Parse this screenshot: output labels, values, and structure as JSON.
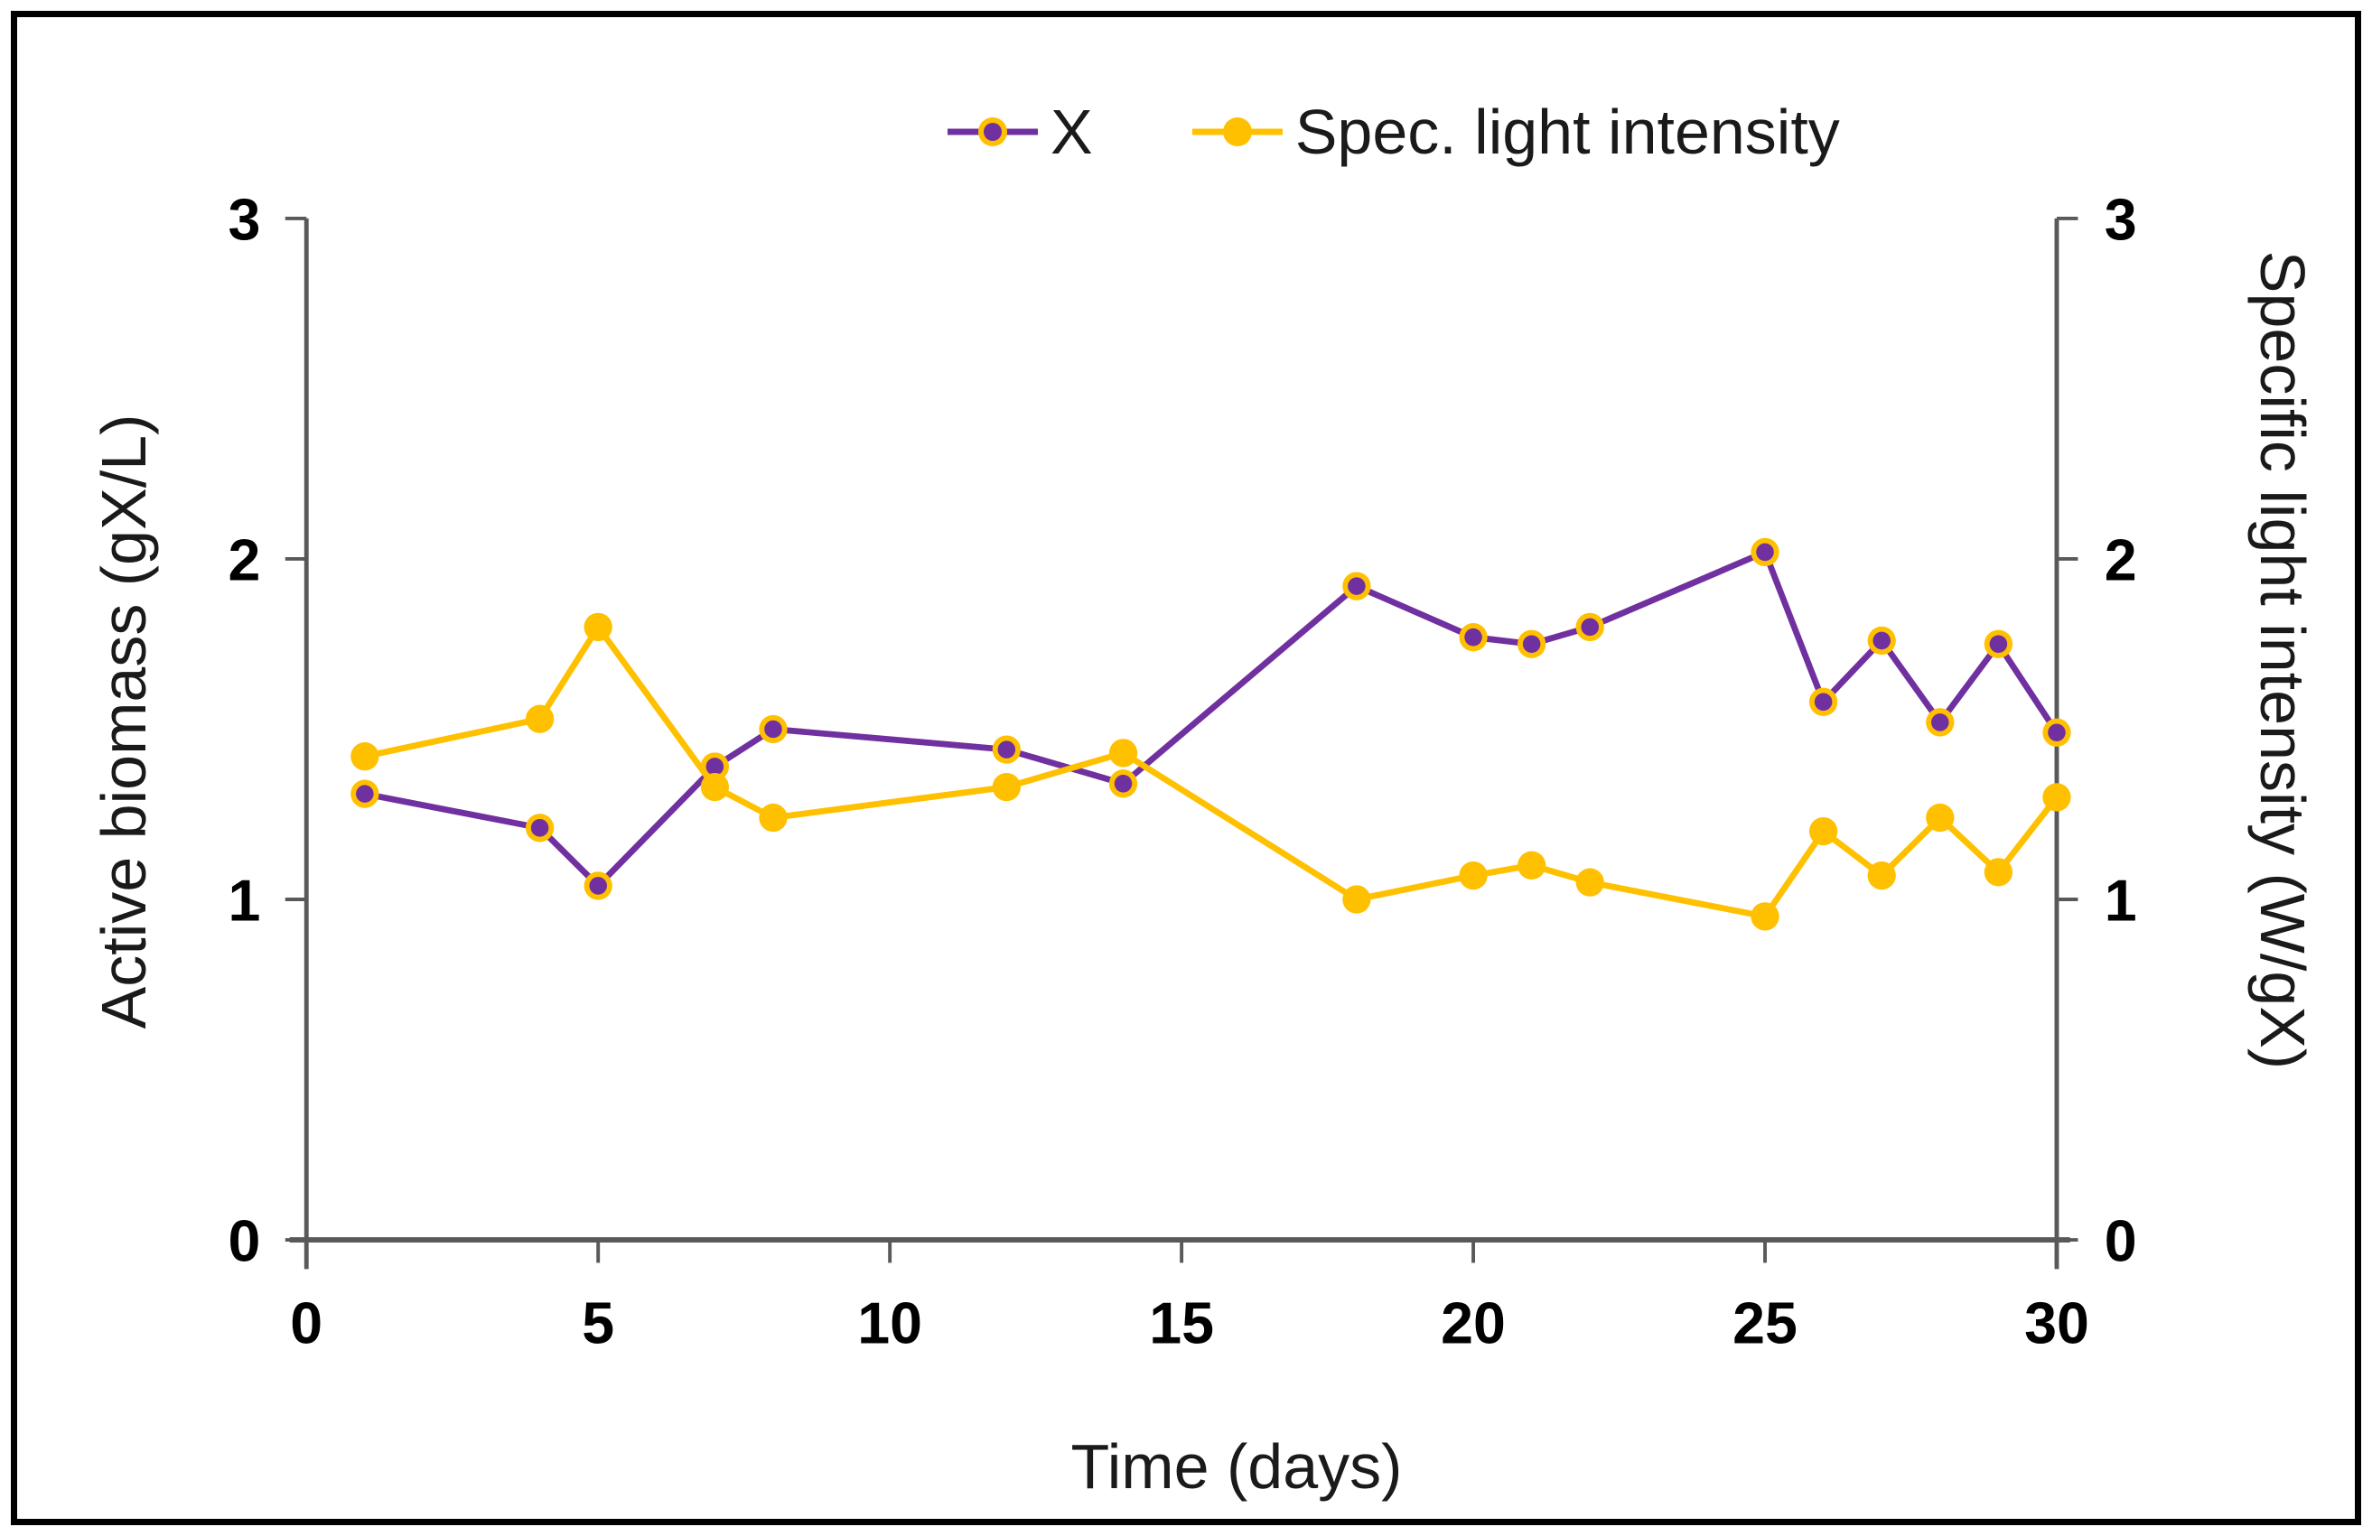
{
  "figure": {
    "background": "#ffffff",
    "border_color": "#000000"
  },
  "chart_data": {
    "type": "line",
    "title": "",
    "xlabel": "Time (days)",
    "ylabel_left": "Active biomass (gX/L)",
    "ylabel_right": "Specific light intensity (W/gX)",
    "legend_position": "top",
    "grid": false,
    "xlim": [
      0,
      30
    ],
    "ylim_left": [
      0,
      3
    ],
    "ylim_right": [
      0,
      3
    ],
    "x_ticks": [
      0,
      5,
      10,
      15,
      20,
      25,
      30
    ],
    "y_ticks_left": [
      0,
      1,
      2,
      3
    ],
    "y_ticks_right": [
      0,
      1,
      2,
      3
    ],
    "axis_color": "#595959",
    "tick_label_color": "#000000",
    "x": [
      1,
      4,
      5,
      7,
      8,
      12,
      14,
      18,
      20,
      21,
      22,
      25,
      26,
      27,
      28,
      29,
      30
    ],
    "series": [
      {
        "name": "X",
        "axis": "left",
        "color": "#7030A0",
        "marker_fill": "#7030A0",
        "marker_ring": "#FFC000",
        "values": [
          1.31,
          1.21,
          1.04,
          1.39,
          1.5,
          1.44,
          1.34,
          1.92,
          1.77,
          1.75,
          1.8,
          2.02,
          1.58,
          1.76,
          1.52,
          1.75,
          1.49
        ]
      },
      {
        "name": "Spec. light intensity",
        "axis": "right",
        "color": "#FFC000",
        "marker_fill": "#FFC000",
        "marker_ring": "#FFC000",
        "values": [
          1.42,
          1.53,
          1.8,
          1.33,
          1.24,
          1.33,
          1.43,
          1.0,
          1.07,
          1.1,
          1.05,
          0.95,
          1.2,
          1.07,
          1.24,
          1.08,
          1.3
        ]
      }
    ]
  }
}
